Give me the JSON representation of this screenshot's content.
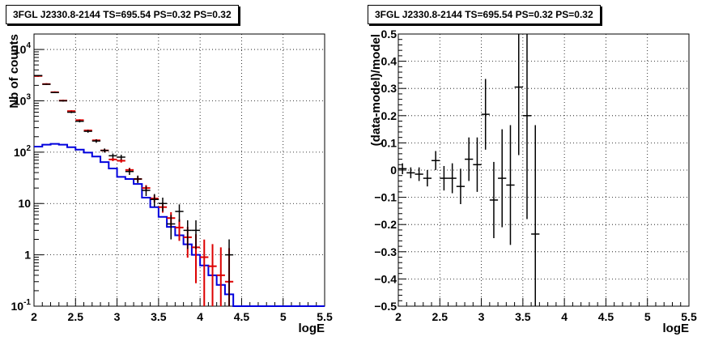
{
  "chart_data": [
    {
      "type": "step",
      "title": "3FGL J2330.8-2144 TS=695.54 PS=0.32 PS=0.32",
      "xlabel": "logE",
      "ylabel": "Nb of counts",
      "xlim": [
        2,
        5.5
      ],
      "ylim": [
        0.1,
        20000
      ],
      "yscale": "log",
      "grid": true,
      "x_ticks": [
        "2",
        "2.5",
        "3",
        "3.5",
        "4",
        "4.5",
        "5",
        "5.5"
      ],
      "y_ticks": [
        "10^-1",
        "1",
        "10",
        "10^2",
        "10^3",
        "10^4"
      ],
      "bin_edges": [
        2.0,
        2.1,
        2.2,
        2.3,
        2.4,
        2.5,
        2.6,
        2.7,
        2.8,
        2.9,
        3.0,
        3.1,
        3.2,
        3.3,
        3.4,
        3.5,
        3.6,
        3.7,
        3.8,
        3.9,
        4.0,
        4.1,
        4.2,
        4.3,
        4.4
      ],
      "series": [
        {
          "kind": "data_points",
          "color": "#000000",
          "x": [
            2.05,
            2.15,
            2.25,
            2.35,
            2.45,
            2.55,
            2.65,
            2.75,
            2.85,
            2.95,
            3.05,
            3.15,
            3.25,
            3.35,
            3.45,
            3.55,
            3.65,
            3.75,
            3.85,
            3.95,
            4.05,
            4.15,
            4.25,
            4.35
          ],
          "y": [
            3100,
            2100,
            1450,
            1000,
            600,
            400,
            255,
            165,
            108,
            85,
            80,
            42,
            30,
            18,
            12,
            10,
            4,
            7,
            3,
            3,
            null,
            null,
            null,
            1
          ],
          "yerr_low": [
            56,
            46,
            38,
            32,
            24,
            20,
            16,
            13,
            10,
            9,
            9,
            6,
            5,
            4,
            3.3,
            3,
            2,
            2.6,
            1.7,
            1.7,
            null,
            null,
            null,
            0.9
          ],
          "yerr_high": [
            56,
            46,
            38,
            32,
            24,
            20,
            16,
            13,
            10,
            9,
            9,
            6,
            5,
            4,
            3.3,
            3,
            2,
            2.6,
            1.7,
            1.7,
            null,
            null,
            null,
            1
          ]
        },
        {
          "kind": "model_total",
          "color": "#dd0000",
          "values": [
            3050,
            2120,
            1470,
            1010,
            630,
            420,
            265,
            170,
            108,
            72,
            68,
            45,
            30,
            20,
            12.5,
            8.5,
            5.2,
            3.4,
            2.2,
            1.4,
            0.9,
            0.6,
            0.4,
            0.3
          ],
          "err": [
            0.04,
            0.04,
            0.04,
            0.04,
            0.04,
            0.04,
            0.04,
            0.05,
            0.06,
            0.07,
            0.08,
            0.1,
            0.12,
            0.14,
            0.17,
            0.22,
            0.3,
            0.45,
            0.6,
            0.8,
            1.2,
            1.7,
            2.5,
            3.5
          ]
        },
        {
          "kind": "model_source",
          "color": "#0000dd",
          "values": [
            128,
            140,
            145,
            140,
            125,
            112,
            98,
            82,
            64,
            48,
            33,
            30,
            24,
            13,
            8.5,
            5.5,
            3.5,
            2.4,
            1.6,
            1.0,
            0.62,
            0.4,
            0.26,
            0.17,
            0.1
          ],
          "flat_after": 4.5
        }
      ]
    },
    {
      "type": "scatter",
      "title": "3FGL J2330.8-2144 TS=695.54 PS=0.32 PS=0.32",
      "xlabel": "logE",
      "ylabel": "(data-model)/model",
      "xlim": [
        2,
        5.5
      ],
      "ylim": [
        -0.5,
        0.5
      ],
      "grid": true,
      "x_ticks": [
        "2",
        "2.5",
        "3",
        "3.5",
        "4",
        "4.5",
        "5",
        "5.5"
      ],
      "y_ticks": [
        "-0.5",
        "-0.4",
        "-0.3",
        "-0.2",
        "-0.1",
        "0",
        "0.1",
        "0.2",
        "0.3",
        "0.4",
        "0.5"
      ],
      "points": [
        {
          "x": 2.05,
          "y": 0.005,
          "err": 0.02
        },
        {
          "x": 2.15,
          "y": -0.01,
          "err": 0.02
        },
        {
          "x": 2.25,
          "y": -0.015,
          "err": 0.025
        },
        {
          "x": 2.35,
          "y": -0.03,
          "err": 0.03
        },
        {
          "x": 2.45,
          "y": 0.035,
          "err": 0.035
        },
        {
          "x": 2.55,
          "y": -0.03,
          "err": 0.045
        },
        {
          "x": 2.65,
          "y": -0.03,
          "err": 0.055
        },
        {
          "x": 2.75,
          "y": -0.06,
          "err": 0.065
        },
        {
          "x": 2.85,
          "y": 0.04,
          "err": 0.08
        },
        {
          "x": 2.95,
          "y": 0.02,
          "err": 0.1
        },
        {
          "x": 3.05,
          "y": 0.205,
          "err": 0.13
        },
        {
          "x": 3.15,
          "y": -0.11,
          "err": 0.14
        },
        {
          "x": 3.25,
          "y": -0.03,
          "err": 0.18
        },
        {
          "x": 3.35,
          "y": -0.055,
          "err": 0.22
        },
        {
          "x": 3.45,
          "y": 0.305,
          "err": 0.25
        },
        {
          "x": 3.55,
          "y": 0.2,
          "err": 0.38
        },
        {
          "x": 3.65,
          "y": -0.235,
          "err": 0.4
        }
      ]
    }
  ]
}
